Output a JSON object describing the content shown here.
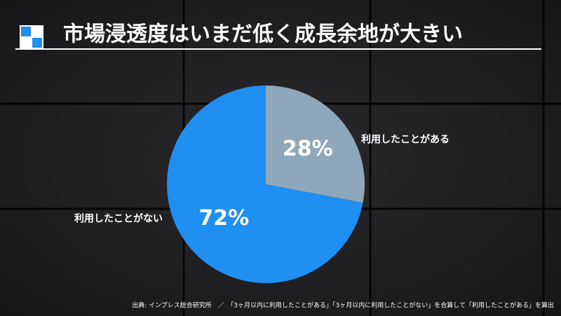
{
  "chart_data": {
    "type": "pie",
    "title": "市場浸透度はいまだ低く成長余地が大きい",
    "categories": [
      "利用したことがある",
      "利用したことがない"
    ],
    "values": [
      28,
      72
    ],
    "value_labels": [
      "28%",
      "72%"
    ],
    "colors": [
      "#8fa7ba",
      "#1f8ff2"
    ],
    "source": "出典: インプレス総合研究所　／　「3ヶ月以内に利用したことがある」「3ヶ月以内に利用したことがない」を合算して「利用したことがある」を算出"
  }
}
